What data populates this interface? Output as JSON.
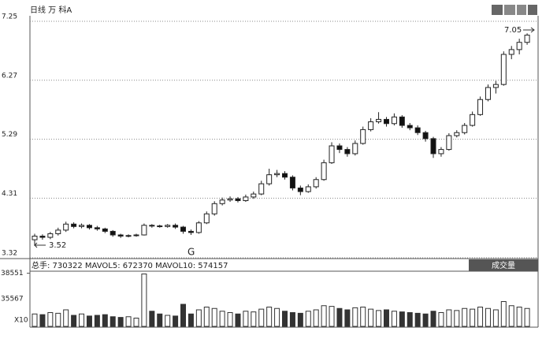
{
  "chart_data": {
    "type": "candlestick",
    "title": "日线 万 科A",
    "open": [
      3.62,
      3.68,
      3.66,
      3.72,
      3.78,
      3.88,
      3.84,
      3.86,
      3.82,
      3.8,
      3.76,
      3.7,
      3.68,
      3.69,
      3.7,
      3.86,
      3.85,
      3.84,
      3.86,
      3.83,
      3.76,
      3.74,
      3.9,
      4.05,
      4.22,
      4.28,
      4.3,
      4.27,
      4.33,
      4.38,
      4.55,
      4.7,
      4.72,
      4.66,
      4.48,
      4.42,
      4.5,
      4.62,
      4.9,
      5.18,
      5.12,
      5.05,
      5.22,
      5.45,
      5.58,
      5.62,
      5.55,
      5.66,
      5.52,
      5.48,
      5.4,
      5.3,
      5.05,
      5.12,
      5.35,
      5.4,
      5.52,
      5.7,
      5.95,
      6.15,
      6.2,
      6.7,
      6.78,
      6.9
    ],
    "high": [
      3.72,
      3.71,
      3.75,
      3.82,
      3.92,
      3.91,
      3.89,
      3.88,
      3.85,
      3.82,
      3.78,
      3.72,
      3.71,
      3.72,
      3.89,
      3.88,
      3.87,
      3.88,
      3.89,
      3.85,
      3.79,
      3.93,
      4.09,
      4.26,
      4.32,
      4.34,
      4.33,
      4.37,
      4.42,
      4.6,
      4.8,
      4.78,
      4.76,
      4.69,
      4.52,
      4.54,
      4.66,
      4.95,
      5.24,
      5.22,
      5.16,
      5.27,
      5.5,
      5.64,
      5.74,
      5.66,
      5.72,
      5.69,
      5.56,
      5.52,
      5.43,
      5.33,
      5.16,
      5.39,
      5.44,
      5.56,
      5.75,
      6.0,
      6.2,
      6.26,
      6.75,
      6.84,
      6.96,
      7.05
    ],
    "low": [
      3.52,
      3.62,
      3.63,
      3.69,
      3.75,
      3.81,
      3.81,
      3.79,
      3.77,
      3.73,
      3.67,
      3.65,
      3.66,
      3.67,
      3.69,
      3.82,
      3.82,
      3.82,
      3.8,
      3.72,
      3.7,
      3.72,
      3.88,
      4.02,
      4.19,
      4.25,
      4.24,
      4.25,
      4.3,
      4.36,
      4.52,
      4.66,
      4.62,
      4.44,
      4.36,
      4.4,
      4.47,
      4.6,
      4.88,
      5.06,
      5.0,
      5.02,
      5.2,
      5.42,
      5.55,
      5.5,
      5.52,
      5.48,
      5.44,
      5.36,
      5.25,
      4.98,
      5.0,
      5.1,
      5.32,
      5.37,
      5.5,
      5.68,
      5.92,
      6.05,
      6.18,
      6.62,
      6.7,
      6.86
    ],
    "close": [
      3.68,
      3.66,
      3.72,
      3.78,
      3.88,
      3.84,
      3.86,
      3.82,
      3.8,
      3.76,
      3.7,
      3.68,
      3.69,
      3.7,
      3.86,
      3.85,
      3.84,
      3.86,
      3.83,
      3.76,
      3.74,
      3.9,
      4.05,
      4.22,
      4.28,
      4.3,
      4.27,
      4.33,
      4.38,
      4.55,
      4.7,
      4.72,
      4.66,
      4.48,
      4.42,
      4.5,
      4.62,
      4.9,
      5.18,
      5.12,
      5.05,
      5.22,
      5.45,
      5.58,
      5.62,
      5.55,
      5.66,
      5.52,
      5.48,
      5.4,
      5.3,
      5.05,
      5.12,
      5.35,
      5.4,
      5.52,
      5.7,
      5.95,
      6.15,
      6.2,
      6.7,
      6.78,
      6.9,
      7.02
    ],
    "volume": [
      9000,
      8500,
      10000,
      9500,
      12000,
      8000,
      9000,
      7500,
      8000,
      8500,
      7000,
      6500,
      7000,
      6000,
      38000,
      11000,
      9000,
      8000,
      7500,
      16000,
      9000,
      12000,
      14000,
      13000,
      11000,
      10000,
      9000,
      11000,
      10500,
      12500,
      14000,
      13000,
      11000,
      10000,
      9500,
      11000,
      12000,
      15000,
      14500,
      13000,
      12000,
      13500,
      14000,
      12500,
      11500,
      12000,
      11000,
      10500,
      10000,
      9500,
      9000,
      11000,
      10000,
      12000,
      11500,
      13000,
      12500,
      14000,
      13000,
      12000,
      18000,
      15000,
      14000,
      13000
    ],
    "ylim": [
      3.32,
      7.25
    ],
    "yticks": [
      3.32,
      4.31,
      5.29,
      6.27,
      7.25
    ],
    "grid": true,
    "annotations": [
      "7.05",
      "3.52",
      "G"
    ],
    "volume_panel": {
      "title": "总手: 730322 MAVOL5: 672370 MAVOL10: 574157",
      "button": "成交量",
      "ylim": [
        0,
        40000
      ],
      "yticks": [
        38551
      ],
      "labels": [
        "35567",
        "X10"
      ]
    }
  }
}
